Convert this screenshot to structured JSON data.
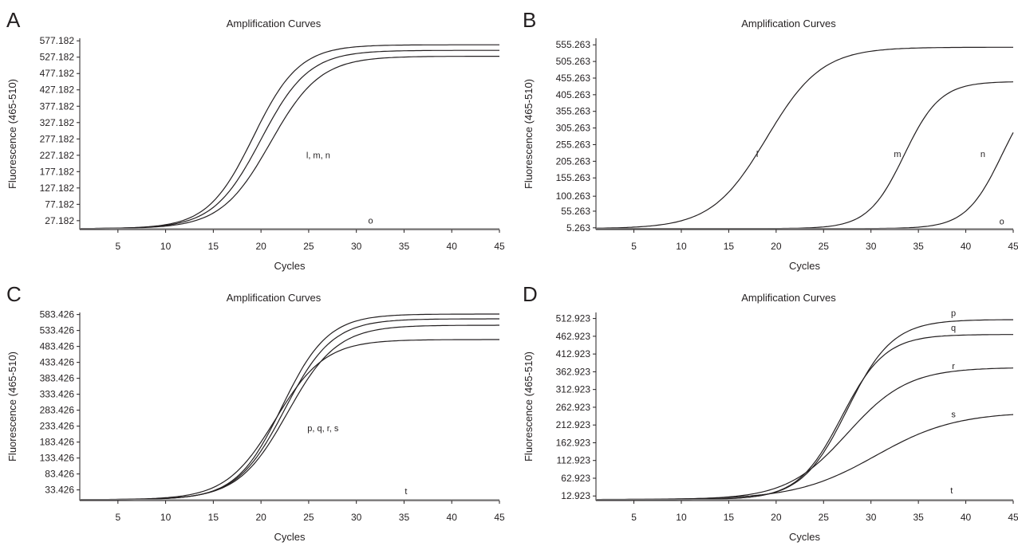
{
  "chart_data": [
    {
      "type": "line",
      "panel_letter": "A",
      "title": "Amplification Curves",
      "xlabel": "Cycles",
      "ylabel": "Fluorescence (465-510)",
      "xlim": [
        1,
        45
      ],
      "ylim": [
        0,
        585
      ],
      "x_ticks": [
        5,
        10,
        15,
        20,
        25,
        30,
        35,
        40,
        45
      ],
      "y_ticks": [
        "577.182",
        "527.182",
        "477.182",
        "427.182",
        "377.182",
        "327.182",
        "277.182",
        "227.182",
        "177.182",
        "127.182",
        "77.182",
        "27.182"
      ],
      "grid": false,
      "series": [
        {
          "mid": 19.2,
          "slope": 2.4,
          "baseline": 3,
          "plateau": 565
        },
        {
          "mid": 20.0,
          "slope": 2.5,
          "baseline": 3,
          "plateau": 548
        },
        {
          "mid": 21.0,
          "slope": 2.6,
          "baseline": 3,
          "plateau": 530
        },
        {
          "mid": 60,
          "slope": 3,
          "baseline": 3,
          "plateau": 3,
          "negative": true
        }
      ],
      "annotations": [
        {
          "text": "l, m, n",
          "x": 26.0,
          "y": 218
        },
        {
          "text": "o",
          "x": 31.5,
          "y": 18
        }
      ]
    },
    {
      "type": "line",
      "panel_letter": "B",
      "title": "Amplification Curves",
      "xlabel": "Cycles",
      "ylabel": "Fluorescence (465-510)",
      "xlim": [
        1,
        45
      ],
      "ylim": [
        0,
        575
      ],
      "x_ticks": [
        5,
        10,
        15,
        20,
        25,
        30,
        35,
        40,
        45
      ],
      "y_ticks": [
        "555.263",
        "505.263",
        "455.263",
        "405.263",
        "355.263",
        "305.263",
        "255.263",
        "205.263",
        "155.263",
        "100.263",
        "55.263",
        "5.263"
      ],
      "grid": false,
      "series": [
        {
          "mid": 19.0,
          "slope": 2.9,
          "baseline": 3,
          "plateau": 548
        },
        {
          "mid": 33.5,
          "slope": 1.9,
          "baseline": 3,
          "plateau": 445
        },
        {
          "mid": 43.8,
          "slope": 1.9,
          "baseline": 3,
          "plateau": 445
        },
        {
          "mid": 80,
          "slope": 3,
          "baseline": 3,
          "plateau": 3,
          "negative": true
        }
      ],
      "annotations": [
        {
          "text": "l",
          "x": 18.0,
          "y": 218
        },
        {
          "text": "m",
          "x": 32.8,
          "y": 218
        },
        {
          "text": "n",
          "x": 41.8,
          "y": 218
        },
        {
          "text": "o",
          "x": 43.8,
          "y": 16
        }
      ]
    },
    {
      "type": "line",
      "panel_letter": "C",
      "title": "Amplification Curves",
      "xlabel": "Cycles",
      "ylabel": "Fluorescence (465-510)",
      "xlim": [
        1,
        45
      ],
      "ylim": [
        0,
        590
      ],
      "x_ticks": [
        5,
        10,
        15,
        20,
        25,
        30,
        35,
        40,
        45
      ],
      "y_ticks": [
        "583.426",
        "533.426",
        "483.426",
        "433.426",
        "383.426",
        "333.426",
        "283.426",
        "233.426",
        "183.426",
        "133.426",
        "83.426",
        "33.426"
      ],
      "grid": false,
      "series": [
        {
          "mid": 22.2,
          "slope": 2.4,
          "baseline": 3,
          "plateau": 585
        },
        {
          "mid": 22.5,
          "slope": 2.5,
          "baseline": 3,
          "plateau": 570
        },
        {
          "mid": 22.8,
          "slope": 2.6,
          "baseline": 3,
          "plateau": 550
        },
        {
          "mid": 21.5,
          "slope": 2.6,
          "baseline": 3,
          "plateau": 505
        },
        {
          "mid": 80,
          "slope": 3,
          "baseline": 3,
          "plateau": 3,
          "negative": true
        }
      ],
      "annotations": [
        {
          "text": "p, q, r, s",
          "x": 26.5,
          "y": 218
        },
        {
          "text": "t",
          "x": 35.2,
          "y": 20
        }
      ]
    },
    {
      "type": "line",
      "panel_letter": "D",
      "title": "Amplification Curves",
      "xlabel": "Cycles",
      "ylabel": "Fluorescence (465-510)",
      "xlim": [
        1,
        45
      ],
      "ylim": [
        0,
        530
      ],
      "x_ticks": [
        5,
        10,
        15,
        20,
        25,
        30,
        35,
        40,
        45
      ],
      "y_ticks": [
        "512.923",
        "462.923",
        "412.923",
        "362.923",
        "312.923",
        "262.923",
        "212.923",
        "162.923",
        "112.923",
        "62.923",
        "12.923"
      ],
      "grid": false,
      "series": [
        {
          "mid": 27.5,
          "slope": 2.4,
          "baseline": 3,
          "plateau": 510
        },
        {
          "mid": 26.9,
          "slope": 2.3,
          "baseline": 3,
          "plateau": 468
        },
        {
          "mid": 27.5,
          "slope": 3.2,
          "baseline": 3,
          "plateau": 375
        },
        {
          "mid": 30.5,
          "slope": 4.2,
          "baseline": 3,
          "plateau": 250
        },
        {
          "mid": 80,
          "slope": 3,
          "baseline": 3,
          "plateau": 3,
          "negative": true
        }
      ],
      "annotations": [
        {
          "text": "p",
          "x": 38.7,
          "y": 520
        },
        {
          "text": "q",
          "x": 38.7,
          "y": 478
        },
        {
          "text": "r",
          "x": 38.7,
          "y": 370
        },
        {
          "text": "s",
          "x": 38.7,
          "y": 235
        },
        {
          "text": "t",
          "x": 38.5,
          "y": 20
        }
      ]
    }
  ]
}
